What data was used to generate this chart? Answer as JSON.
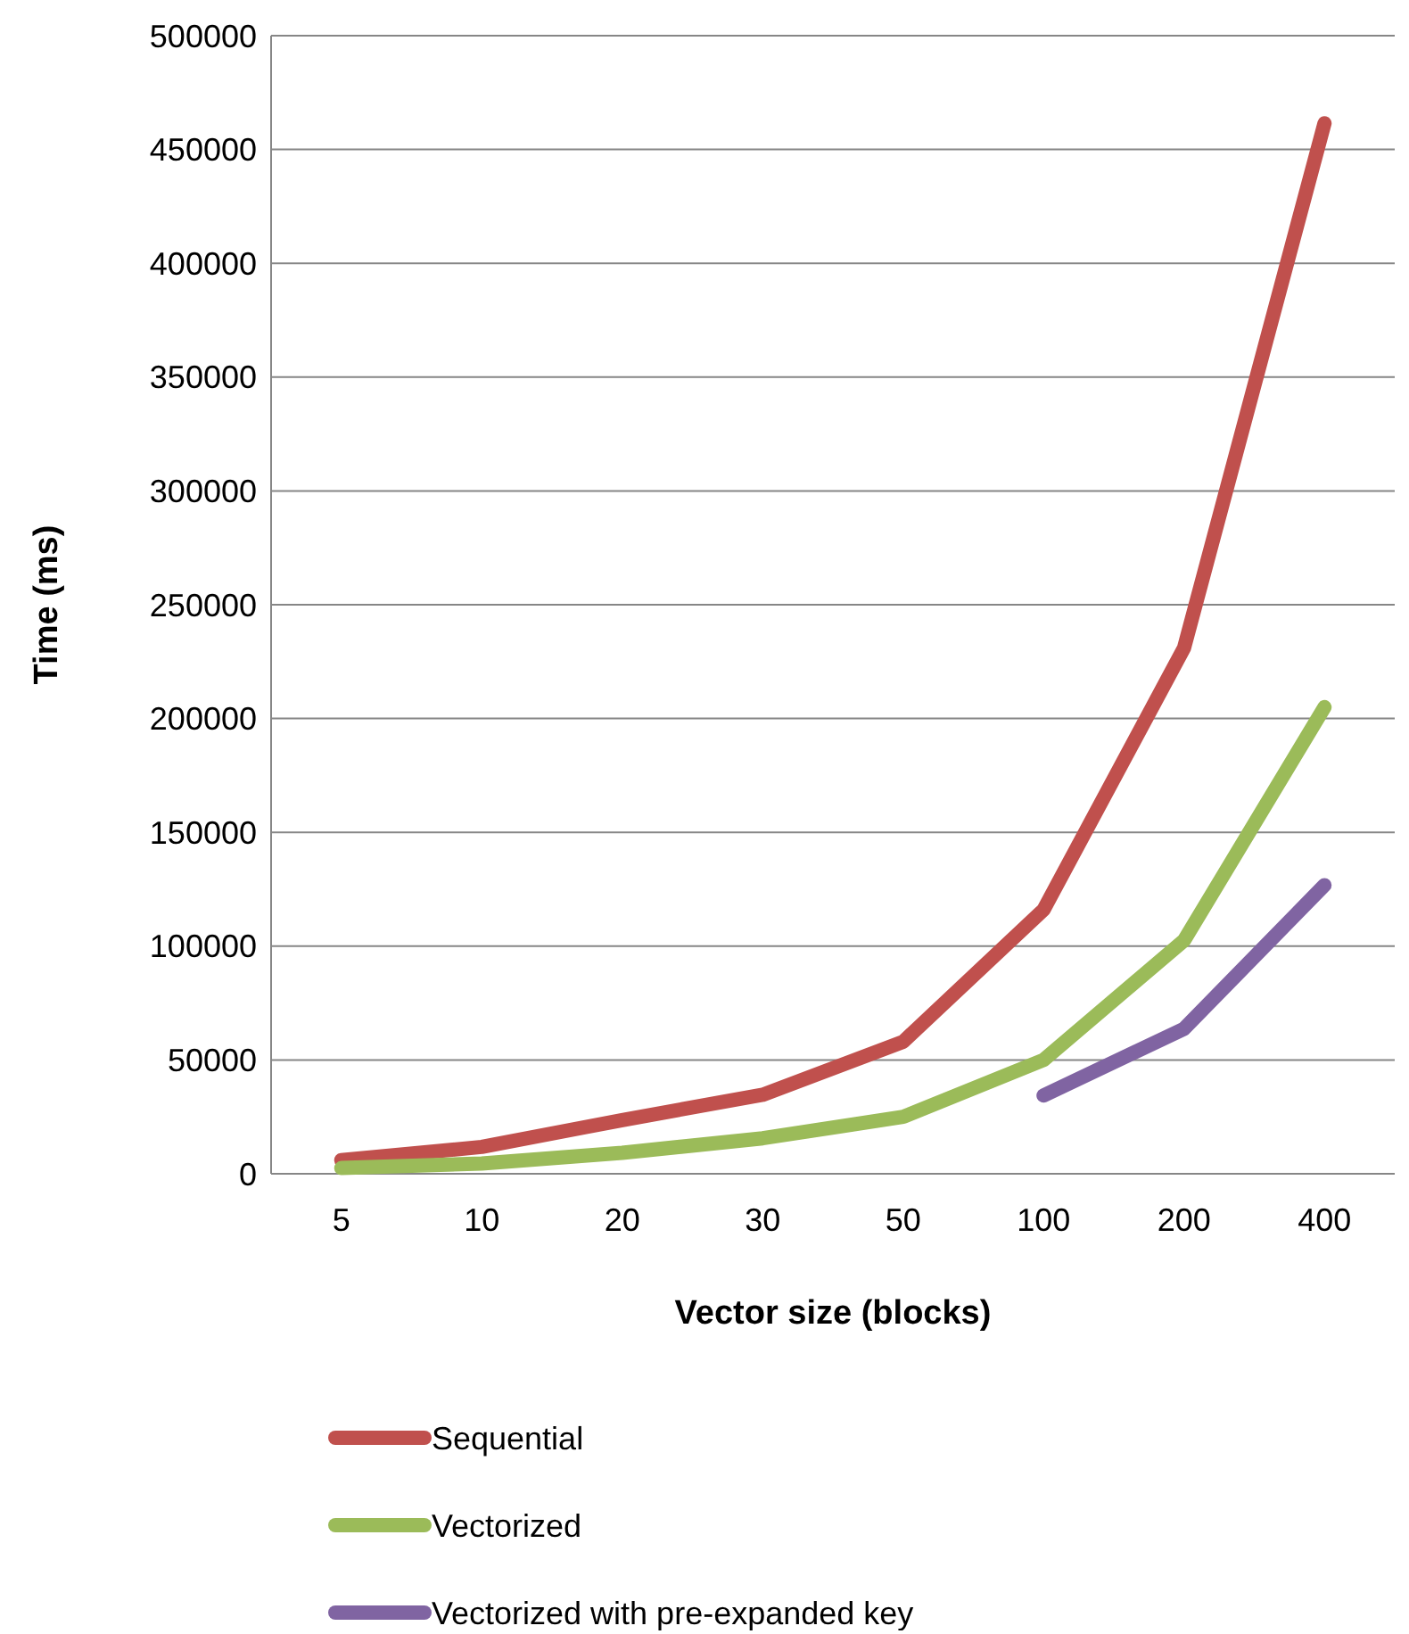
{
  "chart_data": {
    "type": "line",
    "xlabel": "Vector size (blocks)",
    "ylabel": "Time (ms)",
    "categories": [
      "5",
      "10",
      "20",
      "30",
      "50",
      "100",
      "200",
      "400"
    ],
    "series": [
      {
        "name": "Sequential",
        "color": "#c0504d",
        "values": [
          6000,
          11800,
          23600,
          34700,
          58000,
          116000,
          231000,
          461500
        ]
      },
      {
        "name": "Vectorized",
        "color": "#9bbb59",
        "values": [
          2500,
          4500,
          9200,
          15600,
          25000,
          50000,
          102500,
          205000
        ]
      },
      {
        "name": "Vectorized with pre-expanded key",
        "color": "#8064a2",
        "values": [
          null,
          null,
          null,
          null,
          null,
          34400,
          63700,
          126800
        ]
      }
    ],
    "ylim": [
      0,
      500000
    ],
    "yticks": [
      0,
      50000,
      100000,
      150000,
      200000,
      250000,
      300000,
      350000,
      400000,
      450000,
      500000
    ],
    "grid": "y",
    "legend": "bottom",
    "marker": "none",
    "line_style": "solid"
  }
}
